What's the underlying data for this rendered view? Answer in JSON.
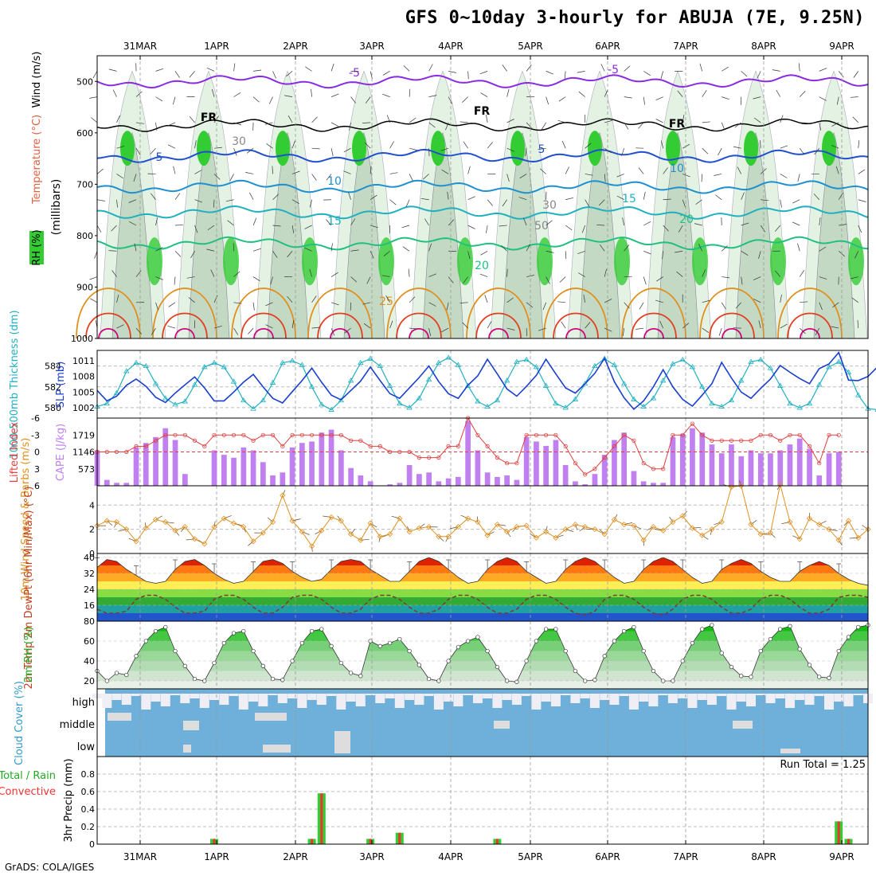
{
  "title": "GFS 0~10day 3-hourly for ABUJA (7E, 9.25N)",
  "credit": "GrADS: COLA/IGES",
  "colors": {
    "rh_green": "#33cc33",
    "rh_light": "#e3f2e3",
    "rh_mid": "#c4d9c4",
    "freezing": "#000000",
    "t_minus5": "#8a2be2",
    "t5": "#2050d0",
    "t10": "#1e90d0",
    "t15": "#20b0c0",
    "t20": "#20c080",
    "t25": "#e09020",
    "t30": "#e04020",
    "t35": "#d00080",
    "thickness": "#20b0c0",
    "slp": "#1a3fcf",
    "cape": "#c080f0",
    "lifted": "#e04040",
    "wind10m": "#e09020",
    "cloud": "#6fb0da",
    "precip_total": "#33cc33",
    "precip_conv": "#ee3333"
  },
  "dates": [
    "31MAR",
    "1APR",
    "2APR",
    "3APR",
    "4APR",
    "5APR",
    "6APR",
    "7APR",
    "8APR",
    "9APR"
  ],
  "upper": {
    "ylabel_rh": "RH (%)",
    "ylabel_temp": "Temperature (°C)",
    "ylabel_wind": "Wind (m/s)",
    "ylabel_units": "(millibars)",
    "levels": [
      "500",
      "600",
      "700",
      "800",
      "900",
      "1000"
    ],
    "contour_labels": [
      "-5",
      "-5",
      "FR",
      "FR",
      "FR",
      "5",
      "5",
      "10",
      "10",
      "15",
      "15",
      "20",
      "20",
      "25",
      "30",
      "30",
      "50"
    ]
  },
  "chart_data": [
    {
      "type": "line",
      "name": "thickness_slp",
      "ylabel_left": "1000-500mb Thickness (dm)",
      "ylabel_right": "SLP (mb)",
      "yticks_left": [
        "584",
        "582",
        "580"
      ],
      "yticks_right": [
        "1011",
        "1008",
        "1005",
        "1002"
      ],
      "series": [
        {
          "name": "1000-500mb Thickness",
          "unit": "dm",
          "ylim": [
            579,
            585.5
          ],
          "values": [
            580.1,
            580.4,
            581.4,
            583.5,
            584.3,
            584.0,
            582.3,
            580.9,
            580.3,
            580.6,
            582.2,
            583.9,
            584.3,
            583.9,
            582.5,
            580.7,
            579.9,
            580.7,
            582.4,
            584.3,
            584.5,
            584.1,
            582.0,
            580.3,
            579.8,
            580.7,
            582.6,
            584.3,
            584.7,
            584.0,
            582.1,
            580.4,
            580.0,
            580.9,
            582.7,
            584.3,
            584.8,
            584.1,
            582.1,
            580.6,
            580.1,
            580.7,
            582.6,
            584.4,
            584.6,
            583.9,
            582.1,
            580.4,
            580.0,
            580.8,
            582.3,
            584.0,
            584.7,
            584.1,
            582.3,
            580.8,
            580.1,
            580.9,
            582.6,
            584.2,
            584.6,
            583.9,
            582.0,
            580.4,
            580.1,
            580.7,
            582.6,
            584.4,
            584.6,
            583.8,
            582.1,
            580.4,
            580.0,
            580.4,
            582.2,
            583.9,
            584.4,
            583.4,
            581.2,
            579.9,
            579.8,
            580.2
          ]
        },
        {
          "name": "SLP",
          "unit": "mb",
          "ylim": [
            1000,
            1013
          ],
          "values": [
            1005.3,
            1003.3,
            1004.2,
            1006.3,
            1007.5,
            1006.1,
            1004.0,
            1003.0,
            1004.8,
            1006.4,
            1007.9,
            1005.8,
            1003.3,
            1003.3,
            1005.0,
            1006.9,
            1008.4,
            1006.0,
            1003.8,
            1002.9,
            1005.1,
            1007.2,
            1009.6,
            1006.9,
            1004.4,
            1003.5,
            1005.3,
            1007.1,
            1009.8,
            1007.2,
            1004.7,
            1003.8,
            1005.8,
            1007.8,
            1010.0,
            1007.0,
            1004.7,
            1003.8,
            1006.3,
            1008.1,
            1011.3,
            1008.5,
            1005.6,
            1004.2,
            1006.1,
            1008.2,
            1011.3,
            1008.5,
            1005.8,
            1004.8,
            1006.6,
            1008.6,
            1011.5,
            1007.0,
            1003.9,
            1001.7,
            1003.3,
            1006.0,
            1009.3,
            1006.0,
            1003.6,
            1002.3,
            1004.4,
            1006.6,
            1010.7,
            1007.7,
            1005.0,
            1003.8,
            1005.7,
            1007.5,
            1010.1,
            1008.8,
            1007.6,
            1006.6,
            1009.5,
            1010.4,
            1012.6,
            1007.3,
            1007.2,
            1008.0,
            1009.9,
            1011.0
          ]
        }
      ]
    },
    {
      "type": "bar+line",
      "name": "cape_lifted",
      "ylabel_left": "Lifted Index",
      "ylabel_right": "CAPE (J/kg)",
      "yticks_left": [
        "-6",
        "-3",
        "0",
        "3",
        "6"
      ],
      "yticks_right": [
        "1719",
        "1146",
        "573"
      ],
      "series": [
        {
          "name": "CAPE",
          "unit": "J/kg",
          "ylim": [
            0,
            2292
          ],
          "values": [
            1200,
            200,
            100,
            100,
            1300,
            1450,
            1650,
            1950,
            1550,
            400,
            0,
            0,
            1200,
            1050,
            950,
            1300,
            1200,
            800,
            350,
            450,
            1300,
            1450,
            1500,
            1800,
            1900,
            1200,
            600,
            350,
            150,
            0,
            50,
            100,
            700,
            400,
            450,
            150,
            250,
            300,
            2200,
            1200,
            450,
            300,
            350,
            200,
            1650,
            1500,
            1350,
            1550,
            700,
            150,
            50,
            400,
            1050,
            1550,
            1800,
            500,
            150,
            100,
            100,
            1650,
            1750,
            1950,
            1800,
            1400,
            1100,
            1400,
            1000,
            1200,
            1100,
            1100,
            1200,
            1400,
            1600,
            1250,
            350,
            1100,
            1150
          ]
        },
        {
          "name": "Lifted Index",
          "ylim": [
            6,
            -6
          ],
          "values": [
            0,
            0,
            0,
            0,
            -1,
            -1,
            -2,
            -3,
            -3,
            -3,
            -2,
            -1,
            -3,
            -3,
            -3,
            -3,
            -2,
            -3,
            -3,
            -1,
            -3,
            -3,
            -3,
            -3,
            -3,
            -3,
            -2,
            -2,
            -1,
            -1,
            0,
            0,
            0,
            1,
            1,
            1,
            -1,
            -1,
            -6,
            -3,
            -1,
            1,
            2,
            2,
            -3,
            -3,
            -3,
            -3,
            -1,
            2,
            4,
            3,
            1,
            -1,
            -3,
            -2,
            2,
            3,
            3,
            -3,
            -3,
            -5,
            -3,
            -2,
            -2,
            -2,
            -2,
            -2,
            -3,
            -3,
            -2,
            -3,
            -3,
            -1,
            2,
            -3,
            -3
          ]
        }
      ]
    },
    {
      "type": "line",
      "name": "wind10m",
      "ylabel": "10m Wind Speed & Barbs (m/s)",
      "yticks": [
        "0",
        "2",
        "4"
      ],
      "ylim": [
        0,
        5.6
      ],
      "series": [
        {
          "name": "10m Wind Speed",
          "unit": "m/s",
          "values": [
            2.3,
            2.7,
            2.6,
            2.0,
            1.0,
            2.1,
            2.8,
            2.6,
            1.9,
            2.2,
            1.2,
            0.8,
            2.2,
            2.9,
            2.5,
            2.2,
            1.0,
            1.7,
            2.6,
            4.8,
            2.7,
            1.8,
            0.6,
            1.9,
            3.0,
            2.7,
            1.6,
            1.1,
            2.5,
            1.4,
            1.6,
            2.9,
            1.8,
            2.1,
            2.2,
            1.4,
            1.4,
            2.2,
            2.9,
            2.6,
            1.5,
            2.4,
            1.8,
            2.2,
            2.3,
            1.3,
            1.8,
            1.3,
            2.0,
            2.4,
            2.2,
            2.0,
            1.6,
            2.8,
            2.4,
            2.3,
            1.1,
            2.2,
            1.9,
            2.6,
            3.1,
            2.1,
            1.5,
            2.0,
            2.6,
            5.5,
            5.6,
            2.4,
            1.6,
            1.7,
            5.7,
            2.6,
            1.2,
            2.9,
            2.4,
            2.0,
            1.1,
            2.7,
            1.3,
            2.0
          ]
        }
      ]
    },
    {
      "type": "area+line",
      "name": "temp2m",
      "ylabel": "2m Temp 2m DewPt (6hr Min/Max) (°C)",
      "yticks": [
        "40",
        "32",
        "24",
        "16"
      ],
      "ylim": [
        8,
        42
      ],
      "series": [
        {
          "name": "2m Temp",
          "unit": "°C",
          "values": [
            35,
            39,
            38,
            34,
            31,
            28,
            27,
            28,
            34,
            38,
            39,
            36,
            32,
            29,
            27,
            28,
            33,
            38,
            39,
            37,
            33,
            30,
            28,
            29,
            34,
            38,
            39,
            38,
            34,
            31,
            28,
            28,
            33,
            38,
            40,
            38,
            34,
            30,
            27,
            28,
            34,
            38,
            40,
            38,
            33,
            30,
            27,
            28,
            34,
            38,
            40,
            38,
            34,
            30,
            27,
            28,
            34,
            38,
            40,
            38,
            34,
            30,
            27,
            28,
            34,
            37,
            39,
            37,
            33,
            30,
            28,
            28,
            33,
            36,
            38,
            36,
            32,
            29,
            27,
            26
          ]
        },
        {
          "name": "2m DewPt",
          "unit": "°C",
          "values": [
            14,
            12,
            12,
            13,
            19,
            21,
            21,
            19,
            15,
            12,
            12,
            13,
            19,
            21,
            21,
            19,
            15,
            12,
            12,
            15,
            20,
            21,
            21,
            19,
            15,
            12,
            12,
            14,
            19,
            21,
            21,
            19,
            15,
            12,
            12,
            14,
            19,
            21,
            21,
            19,
            15,
            12,
            12,
            14,
            19,
            21,
            21,
            19,
            15,
            12,
            11,
            13,
            19,
            21,
            21,
            19,
            15,
            12,
            11,
            14,
            19,
            21,
            21,
            19,
            15,
            12,
            12,
            14,
            19,
            21,
            21,
            19,
            15,
            12,
            12,
            14,
            20,
            21,
            21,
            20
          ]
        }
      ]
    },
    {
      "type": "area",
      "name": "rh2m",
      "ylabel": "2m RH (%)",
      "yticks": [
        "80",
        "60",
        "40",
        "20"
      ],
      "ylim": [
        12,
        80
      ],
      "series": [
        {
          "name": "2m RH",
          "unit": "%",
          "values": [
            30,
            20,
            28,
            26,
            45,
            60,
            70,
            74,
            50,
            35,
            22,
            20,
            38,
            58,
            68,
            70,
            50,
            35,
            22,
            21,
            40,
            58,
            70,
            72,
            55,
            38,
            28,
            25,
            60,
            55,
            58,
            62,
            50,
            36,
            22,
            20,
            40,
            54,
            60,
            64,
            50,
            34,
            20,
            19,
            40,
            60,
            72,
            72,
            50,
            30,
            20,
            21,
            45,
            60,
            70,
            74,
            50,
            30,
            20,
            20,
            40,
            58,
            72,
            76,
            48,
            34,
            25,
            24,
            50,
            62,
            72,
            75,
            52,
            36,
            24,
            23,
            50,
            64,
            74,
            76
          ]
        }
      ]
    },
    {
      "type": "bar",
      "name": "cloud",
      "ylabel": "Cloud Cover (%)",
      "categories": [
        "high",
        "middle",
        "low"
      ]
    },
    {
      "type": "bar",
      "name": "precip",
      "ylabel_total": "Total / Rain",
      "ylabel_conv": "Convective",
      "ylabel": "3hr Precip (mm)",
      "yticks": [
        "0",
        "0.2",
        "0.4",
        "0.6",
        "0.8"
      ],
      "ylim": [
        0,
        1.0
      ],
      "annotation": "Run Total = 1.25",
      "series": [
        {
          "name": "Total / Rain",
          "unit": "mm",
          "values": [
            0,
            0,
            0,
            0,
            0,
            0,
            0,
            0,
            0,
            0,
            0,
            0,
            0.06,
            0,
            0,
            0,
            0,
            0,
            0,
            0,
            0,
            0,
            0.06,
            0.58,
            0,
            0,
            0,
            0,
            0.06,
            0,
            0,
            0.13,
            0,
            0,
            0,
            0,
            0,
            0,
            0,
            0,
            0,
            0.06,
            0,
            0,
            0,
            0,
            0,
            0,
            0,
            0,
            0,
            0,
            0,
            0,
            0,
            0,
            0,
            0,
            0,
            0,
            0,
            0,
            0,
            0,
            0,
            0,
            0,
            0,
            0,
            0,
            0,
            0,
            0,
            0,
            0,
            0,
            0.26,
            0.06,
            0,
            0
          ]
        },
        {
          "name": "Convective",
          "unit": "mm",
          "values": [
            0,
            0,
            0,
            0,
            0,
            0,
            0,
            0,
            0,
            0,
            0,
            0,
            0.06,
            0,
            0,
            0,
            0,
            0,
            0,
            0,
            0,
            0,
            0.06,
            0.58,
            0,
            0,
            0,
            0,
            0.06,
            0,
            0,
            0.13,
            0,
            0,
            0,
            0,
            0,
            0,
            0,
            0,
            0,
            0.06,
            0,
            0,
            0,
            0,
            0,
            0,
            0,
            0,
            0,
            0,
            0,
            0,
            0,
            0,
            0,
            0,
            0,
            0,
            0,
            0,
            0,
            0,
            0,
            0,
            0,
            0,
            0,
            0,
            0,
            0,
            0,
            0,
            0,
            0,
            0.26,
            0.06,
            0,
            0
          ]
        }
      ]
    }
  ]
}
